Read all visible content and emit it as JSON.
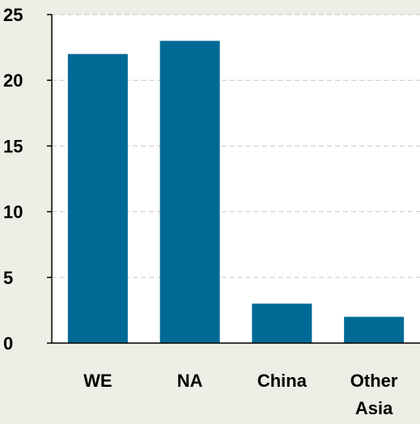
{
  "chart_data": {
    "type": "bar",
    "categories": [
      "WE",
      "NA",
      "China",
      "Other Asia"
    ],
    "category_lines": [
      [
        "WE"
      ],
      [
        "NA"
      ],
      [
        "China"
      ],
      [
        "Other",
        "Asia"
      ]
    ],
    "values": [
      22,
      23,
      3,
      2
    ],
    "yticks": [
      "0",
      "5",
      "10",
      "15",
      "20",
      "25"
    ],
    "ylim": [
      0,
      25
    ],
    "grid": true,
    "title": "",
    "xlabel": "",
    "ylabel": "",
    "colors": {
      "bar": "#006a96",
      "background": "#ebefe5",
      "plot_background": "#ffffff",
      "grid": "#c8c8c8",
      "axis": "#000000"
    }
  }
}
